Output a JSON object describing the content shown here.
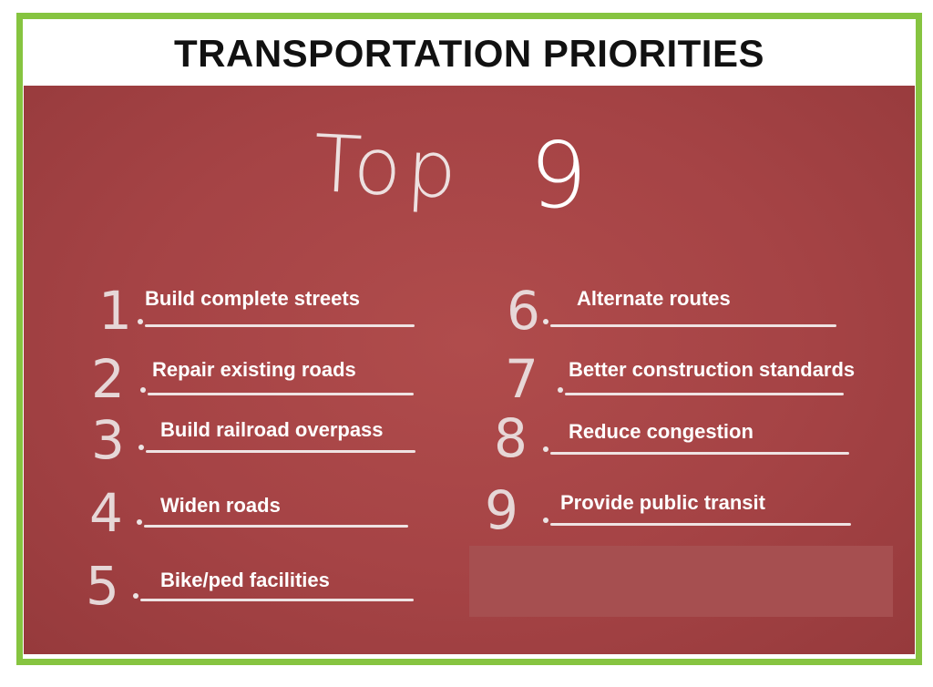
{
  "title": "TRANSPORTATION PRIORITIES",
  "headline": {
    "word": "Top",
    "number": "9"
  },
  "colors": {
    "border": "#86c440",
    "board": "#a54345",
    "text": "#ffffff"
  },
  "items": [
    {
      "number": "1",
      "label": "Build complete streets"
    },
    {
      "number": "2",
      "label": "Repair existing roads"
    },
    {
      "number": "3",
      "label": "Build railroad overpass"
    },
    {
      "number": "4",
      "label": "Widen roads"
    },
    {
      "number": "5",
      "label": "Bike/ped facilities"
    },
    {
      "number": "6",
      "label": "Alternate routes"
    },
    {
      "number": "7",
      "label": "Better construction standards"
    },
    {
      "number": "8",
      "label": "Reduce congestion"
    },
    {
      "number": "9",
      "label": "Provide public transit"
    }
  ]
}
